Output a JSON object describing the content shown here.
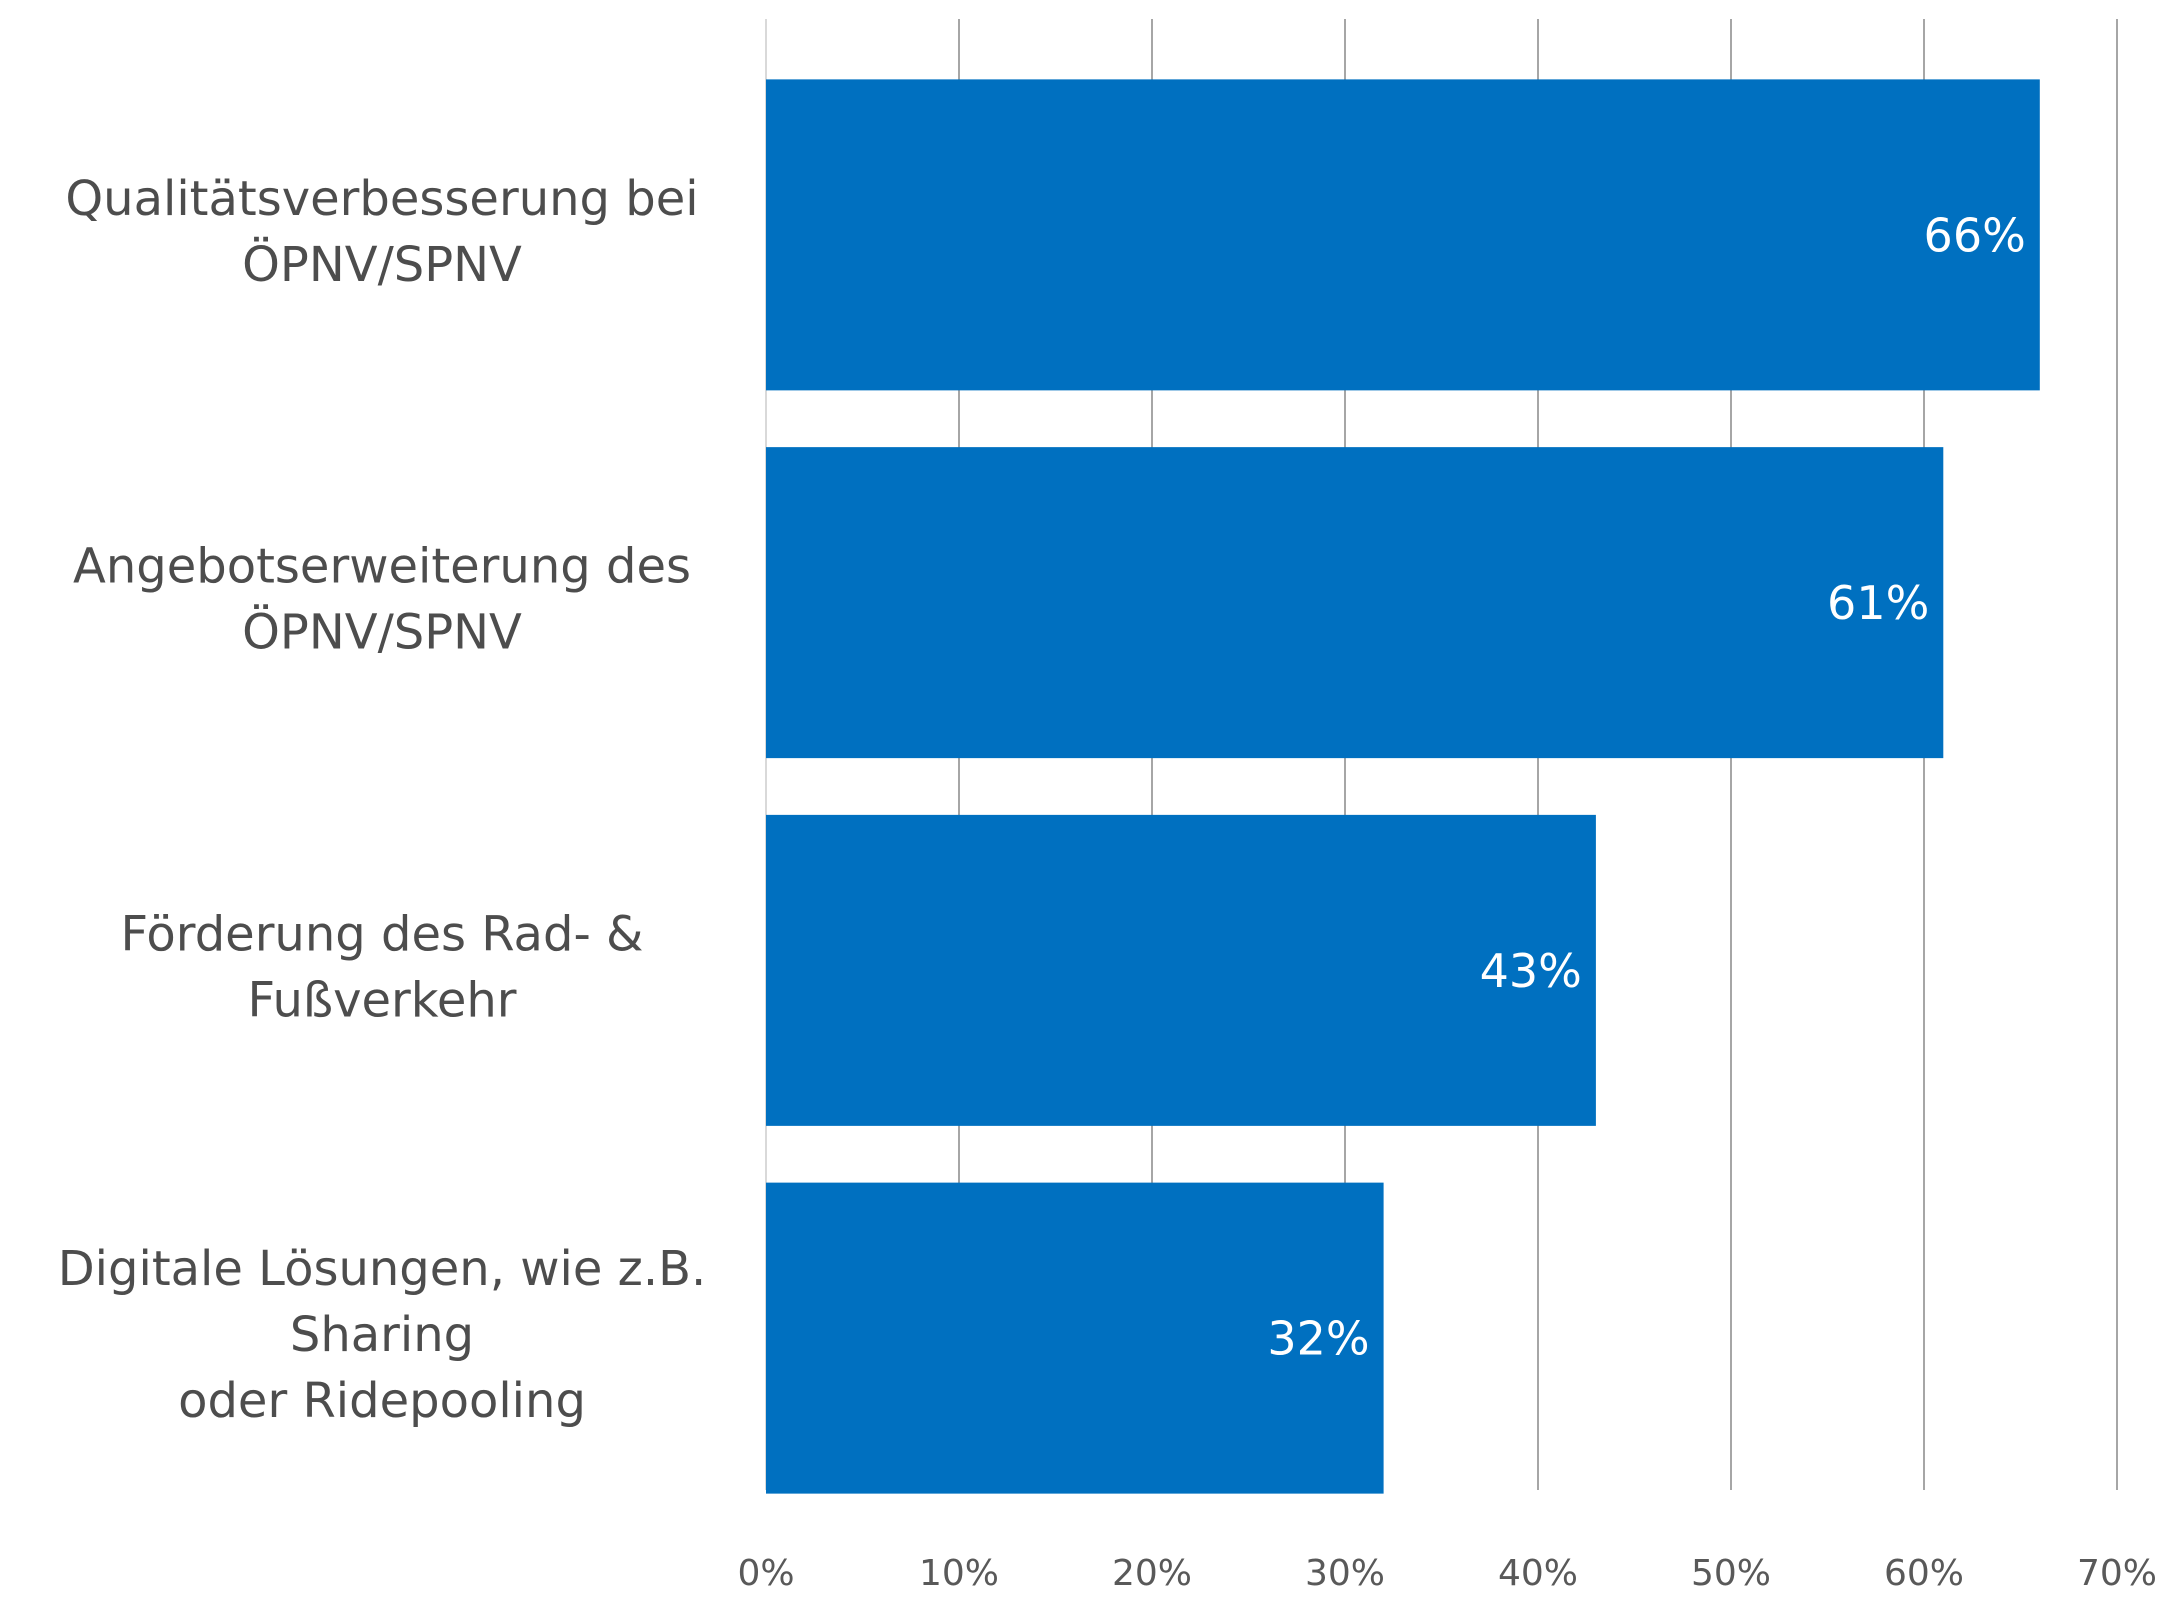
{
  "chart_data": {
    "type": "bar",
    "orientation": "horizontal",
    "categories": [
      "Qualitätsverbesserung bei\nÖPNV/SPNV",
      "Angebotserweiterung des\nÖPNV/SPNV",
      "Förderung des Rad- &\nFußverkehr",
      "Digitale Lösungen, wie z.B.\nSharing\noder Ridepooling"
    ],
    "values": [
      66,
      61,
      43,
      32
    ],
    "value_labels": [
      "66%",
      "61%",
      "43%",
      "32%"
    ],
    "color": "#0070c0",
    "xlim": [
      0,
      70
    ],
    "xticks": [
      {
        "value": 0,
        "label": "0%"
      },
      {
        "value": 10,
        "label": "10%"
      },
      {
        "value": 20,
        "label": "20%"
      },
      {
        "value": 30,
        "label": "30%"
      },
      {
        "value": 40,
        "label": "40%"
      },
      {
        "value": 50,
        "label": "50%"
      },
      {
        "value": 60,
        "label": "60%"
      },
      {
        "value": 70,
        "label": "70%"
      }
    ],
    "grid": true
  }
}
